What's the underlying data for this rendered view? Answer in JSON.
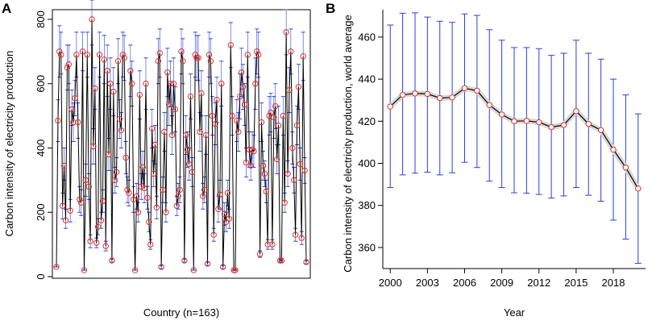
{
  "colors": {
    "line": "#000000",
    "point": "#e0312b",
    "errorbar": "#2a3fe0",
    "frame": "#000000"
  },
  "chart_data": [
    {
      "panel": "A",
      "type": "line",
      "title": "",
      "xlabel": "Country (n=163)",
      "ylabel": "Carbon intensity of electricity production",
      "ylim": [
        -5,
        830
      ],
      "xlim": [
        0,
        165
      ],
      "yticks": [
        0,
        200,
        400,
        600,
        800
      ],
      "x_tick_labels": false,
      "values": [
        30,
        485,
        700,
        690,
        220,
        345,
        175,
        650,
        660,
        205,
        520,
        480,
        555,
        690,
        480,
        240,
        230,
        700,
        20,
        300,
        690,
        280,
        110,
        800,
        405,
        585,
        105,
        155,
        690,
        175,
        235,
        675,
        95,
        640,
        380,
        600,
        50,
        575,
        300,
        325,
        670,
        490,
        455,
        690,
        680,
        370,
        270,
        260,
        640,
        600,
        240,
        20,
        250,
        200,
        565,
        280,
        340,
        275,
        600,
        245,
        170,
        100,
        460,
        320,
        410,
        215,
        670,
        695,
        30,
        270,
        450,
        200,
        635,
        535,
        600,
        440,
        600,
        520,
        220,
        250,
        270,
        700,
        670,
        50,
        440,
        395,
        350,
        560,
        325,
        20,
        690,
        680,
        680,
        450,
        570,
        250,
        270,
        440,
        40,
        690,
        670,
        500,
        130,
        475,
        550,
        210,
        255,
        600,
        30,
        195,
        170,
        260,
        180,
        720,
        500,
        20,
        20,
        485,
        450,
        560,
        635,
        590,
        535,
        355,
        690,
        395,
        345,
        395,
        390,
        600,
        700,
        690,
        70,
        480,
        345,
        320,
        265,
        100,
        500,
        510,
        100,
        495,
        530,
        365,
        470,
        50,
        50,
        500,
        230,
        760,
        320,
        580,
        700,
        400,
        300,
        130,
        470,
        590,
        350,
        120,
        685,
        330,
        45
      ],
      "err_low": [
        30,
        420,
        620,
        630,
        180,
        300,
        150,
        580,
        600,
        170,
        470,
        420,
        500,
        620,
        430,
        200,
        190,
        640,
        20,
        250,
        620,
        240,
        90,
        720,
        350,
        520,
        90,
        130,
        620,
        150,
        200,
        600,
        80,
        560,
        330,
        520,
        45,
        500,
        260,
        280,
        600,
        430,
        400,
        620,
        610,
        320,
        230,
        220,
        560,
        530,
        200,
        20,
        210,
        170,
        490,
        240,
        290,
        230,
        520,
        210,
        140,
        85,
        400,
        280,
        350,
        180,
        600,
        620,
        25,
        230,
        390,
        170,
        560,
        470,
        530,
        380,
        520,
        450,
        190,
        210,
        230,
        630,
        600,
        45,
        380,
        340,
        300,
        490,
        280,
        20,
        620,
        610,
        610,
        390,
        500,
        210,
        230,
        380,
        35,
        620,
        600,
        440,
        110,
        410,
        480,
        170,
        210,
        530,
        25,
        160,
        140,
        220,
        150,
        650,
        440,
        20,
        20,
        420,
        390,
        490,
        560,
        520,
        470,
        310,
        620,
        340,
        300,
        340,
        340,
        520,
        630,
        620,
        60,
        420,
        300,
        280,
        230,
        85,
        440,
        450,
        85,
        430,
        460,
        320,
        410,
        45,
        45,
        440,
        200,
        690,
        280,
        510,
        630,
        350,
        260,
        110,
        410,
        520,
        300,
        100,
        610,
        290,
        40
      ],
      "err_high": [
        30,
        550,
        780,
        760,
        260,
        400,
        210,
        720,
        720,
        240,
        580,
        540,
        610,
        760,
        540,
        280,
        270,
        760,
        20,
        350,
        760,
        320,
        130,
        860,
        460,
        650,
        120,
        180,
        760,
        200,
        270,
        750,
        110,
        720,
        430,
        680,
        55,
        650,
        340,
        370,
        740,
        550,
        510,
        760,
        750,
        420,
        310,
        300,
        720,
        670,
        280,
        20,
        290,
        230,
        640,
        320,
        390,
        320,
        680,
        280,
        200,
        115,
        520,
        360,
        470,
        250,
        740,
        770,
        35,
        310,
        510,
        230,
        710,
        600,
        670,
        500,
        680,
        590,
        250,
        290,
        310,
        770,
        740,
        55,
        500,
        450,
        400,
        630,
        370,
        20,
        760,
        750,
        750,
        510,
        640,
        290,
        310,
        500,
        45,
        760,
        740,
        560,
        150,
        540,
        620,
        250,
        300,
        670,
        35,
        230,
        200,
        300,
        210,
        790,
        560,
        20,
        20,
        550,
        510,
        630,
        710,
        660,
        600,
        400,
        760,
        450,
        390,
        450,
        440,
        680,
        770,
        760,
        80,
        540,
        390,
        360,
        300,
        115,
        560,
        570,
        115,
        560,
        600,
        410,
        530,
        55,
        55,
        560,
        260,
        830,
        360,
        650,
        770,
        450,
        340,
        150,
        530,
        660,
        400,
        140,
        760,
        370,
        50
      ]
    },
    {
      "panel": "B",
      "type": "line",
      "title": "",
      "xlabel": "Year",
      "ylabel": "Carbon intensity of electricity production, world average",
      "ylim": [
        350,
        473
      ],
      "xlim": [
        1999.4,
        2020.6
      ],
      "yticks": [
        360,
        380,
        400,
        420,
        440,
        460
      ],
      "xticks": [
        2000,
        2003,
        2006,
        2009,
        2012,
        2015,
        2018
      ],
      "x": [
        2000,
        2001,
        2002,
        2003,
        2004,
        2005,
        2006,
        2007,
        2008,
        2009,
        2010,
        2011,
        2012,
        2013,
        2014,
        2015,
        2016,
        2017,
        2018,
        2019,
        2020
      ],
      "values": [
        427,
        432.5,
        433.2,
        433.0,
        431.0,
        431.3,
        435.7,
        434.5,
        427.7,
        423.2,
        420.0,
        420.2,
        419.5,
        417.2,
        418.2,
        424.8,
        418.7,
        415.8,
        406.5,
        398.0,
        388.0
      ],
      "err_low": [
        388.5,
        394.5,
        395.3,
        395.8,
        394.5,
        395.5,
        400.5,
        398.0,
        391.5,
        388.5,
        386.0,
        385.8,
        385.2,
        383.5,
        384.5,
        388.5,
        384.8,
        382.0,
        373.0,
        364.0,
        352.5
      ],
      "err_high": [
        465.7,
        471.3,
        471.5,
        469.5,
        467.5,
        467.0,
        471.0,
        470.3,
        463.5,
        458.5,
        455.0,
        455.0,
        454.5,
        451.3,
        452.3,
        458.5,
        452.3,
        449.5,
        440.0,
        432.5,
        423.5
      ]
    }
  ]
}
